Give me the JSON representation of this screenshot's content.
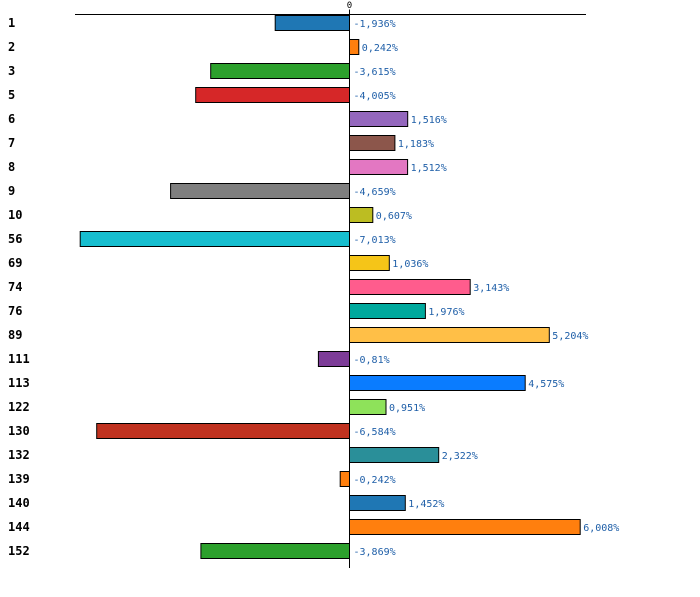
{
  "chart_data": {
    "type": "bar",
    "orientation": "horizontal",
    "title": "",
    "xlabel": "",
    "ylabel": "",
    "xlim": [
      -7.3,
      8.6
    ],
    "zero_tick_label": "0",
    "value_suffix": "%",
    "decimal_separator": ",",
    "categories": [
      "1",
      "2",
      "3",
      "5",
      "6",
      "7",
      "8",
      "9",
      "10",
      "56",
      "69",
      "74",
      "76",
      "89",
      "111",
      "113",
      "122",
      "130",
      "132",
      "139",
      "140",
      "144",
      "152"
    ],
    "values": [
      -1.936,
      0.242,
      -3.615,
      -4.005,
      1.516,
      1.183,
      1.512,
      -4.659,
      0.607,
      -7.013,
      1.036,
      3.143,
      1.976,
      5.204,
      -0.81,
      4.575,
      0.951,
      -6.584,
      2.322,
      -0.242,
      1.452,
      6.008,
      -3.869
    ],
    "value_labels": [
      "-1,936%",
      "0,242%",
      "-3,615%",
      "-4,005%",
      "1,516%",
      "1,183%",
      "1,512%",
      "-4,659%",
      "0,607%",
      "-7,013%",
      "1,036%",
      "3,143%",
      "1,976%",
      "5,204%",
      "-0,81%",
      "4,575%",
      "0,951%",
      "-6,584%",
      "2,322%",
      "-0,242%",
      "1,452%",
      "6,008%",
      "-3,869%"
    ],
    "colors": [
      "#1f77b4",
      "#ff7f0e",
      "#2ca02c",
      "#d62728",
      "#9467bd",
      "#8c564b",
      "#e377c2",
      "#7f7f7f",
      "#bcbd22",
      "#17becf",
      "#f5c518",
      "#ff5c8d",
      "#00a99d",
      "#ffbf47",
      "#7d3c98",
      "#0a7cff",
      "#8ee25a",
      "#c0321f",
      "#2a8f99",
      "#ff7f0e",
      "#1f77b4",
      "#ff7f0e",
      "#2ca02c"
    ]
  }
}
